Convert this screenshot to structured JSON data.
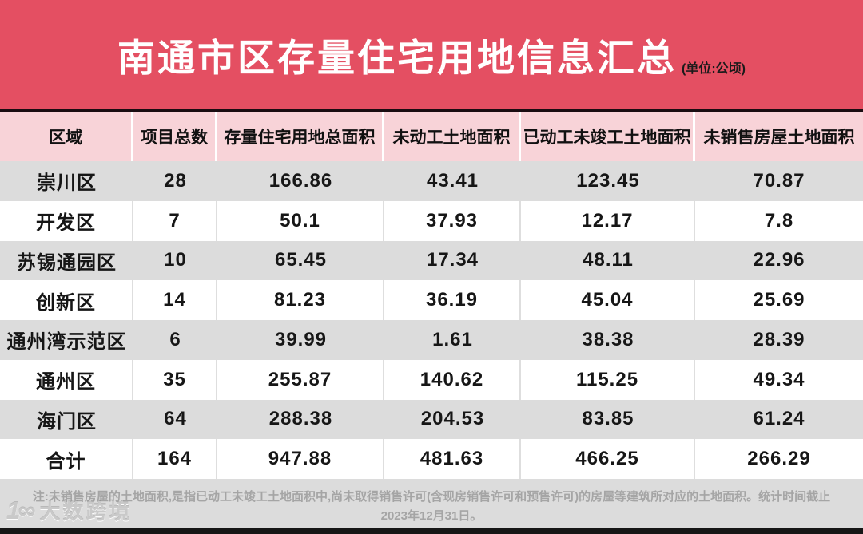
{
  "chart_data": {
    "type": "table",
    "title": "南通市区存量住宅用地信息汇总",
    "unit_note": "(单位:公顷)",
    "columns": [
      "区域",
      "项目总数",
      "存量住宅用地总面积",
      "未动工土地面积",
      "已动工未竣工土地面积",
      "未销售房屋土地面积"
    ],
    "rows": [
      [
        "崇川区",
        "28",
        "166.86",
        "43.41",
        "123.45",
        "70.87"
      ],
      [
        "开发区",
        "7",
        "50.1",
        "37.93",
        "12.17",
        "7.8"
      ],
      [
        "苏锡通园区",
        "10",
        "65.45",
        "17.34",
        "48.11",
        "22.96"
      ],
      [
        "创新区",
        "14",
        "81.23",
        "36.19",
        "45.04",
        "25.69"
      ],
      [
        "通州湾示范区",
        "6",
        "39.99",
        "1.61",
        "38.38",
        "28.39"
      ],
      [
        "通州区",
        "35",
        "255.87",
        "140.62",
        "115.25",
        "49.34"
      ],
      [
        "海门区",
        "64",
        "288.38",
        "204.53",
        "83.85",
        "61.24"
      ],
      [
        "合计",
        "164",
        "947.88",
        "481.63",
        "466.25",
        "266.29"
      ]
    ],
    "note_line1": "注:未销售房屋的土地面积,是指已动工未竣工土地面积中,尚未取得销售许可(含现房销售许可和预售许可)的房屋等建筑所对应的土地面积。统计时间截止",
    "note_line2": "2023年12月31日。"
  },
  "footer": {
    "brand_icon": "1∞",
    "brand_name": "大数跨境"
  },
  "colors": {
    "title_bg": "#e44f62",
    "header_bg": "#f8d3d8",
    "row_alt_bg": "#dcdcdc",
    "row_bg": "#ffffff",
    "divider": "#1a0c11",
    "bottom_bar": "#161616",
    "note_text": "#a5a5a5",
    "cell_text": "#161616"
  }
}
